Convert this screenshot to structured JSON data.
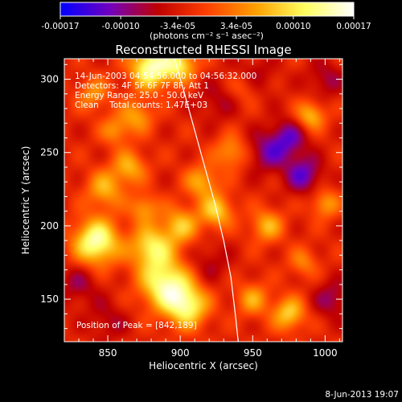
{
  "chart_data": {
    "type": "heatmap",
    "title": "Reconstructed RHESSI Image",
    "xlabel": "Heliocentric X (arcsec)",
    "ylabel": "Heliocentric Y (arcsec)",
    "xlim": [
      820,
      1012
    ],
    "ylim": [
      121,
      314
    ],
    "x_ticks": [
      850,
      900,
      950,
      1000
    ],
    "y_ticks": [
      150,
      200,
      250,
      300
    ],
    "colorbar": {
      "min": -0.00017,
      "max": 0.00017,
      "ticks": [
        "-0.00017",
        "-0.00010",
        "-3.4e-05",
        "3.4e-05",
        "0.00010",
        "0.00017"
      ],
      "unit_label": "(photons cm⁻² s⁻¹ asec⁻²)",
      "colors": [
        "#0000ff",
        "#7000c0",
        "#c00000",
        "#ff4000",
        "#ffa000",
        "#ffff60",
        "#ffffff"
      ]
    },
    "annotations": {
      "time_range": "14-Jun-2003 04:54:56.000 to 04:56:32.000",
      "detectors": "Detectors: 4F 5F 6F 7F 8F, Att 1",
      "energy_range": "Energy Range: 25.0 - 50.0 keV",
      "clean_counts": "Clean    Total counts: 1.47E+03",
      "peak": "Position of Peak = [842,189]"
    },
    "limb_curve": [
      [
        896,
        314
      ],
      [
        903,
        290
      ],
      [
        910,
        265
      ],
      [
        917,
        240
      ],
      [
        924,
        215
      ],
      [
        930,
        190
      ],
      [
        935,
        165
      ],
      [
        938,
        140
      ],
      [
        940,
        121
      ]
    ],
    "sources": [
      {
        "x": 880,
        "y": 308,
        "amp": 0.00017,
        "s": 10
      },
      {
        "x": 900,
        "y": 310,
        "amp": 0.00012,
        "s": 8
      },
      {
        "x": 842,
        "y": 189,
        "amp": 0.00017,
        "s": 11
      },
      {
        "x": 848,
        "y": 225,
        "amp": 9e-05,
        "s": 9
      },
      {
        "x": 890,
        "y": 160,
        "amp": 0.00016,
        "s": 12
      },
      {
        "x": 880,
        "y": 185,
        "amp": 0.00013,
        "s": 10
      },
      {
        "x": 905,
        "y": 145,
        "amp": 0.00014,
        "s": 10
      },
      {
        "x": 900,
        "y": 200,
        "amp": 0.0001,
        "s": 9
      },
      {
        "x": 915,
        "y": 230,
        "amp": 9e-05,
        "s": 8
      },
      {
        "x": 925,
        "y": 210,
        "amp": 0.00011,
        "s": 8
      },
      {
        "x": 935,
        "y": 250,
        "amp": 8e-05,
        "s": 8
      },
      {
        "x": 870,
        "y": 275,
        "amp": 8e-05,
        "s": 8
      },
      {
        "x": 865,
        "y": 240,
        "amp": 9e-05,
        "s": 8
      },
      {
        "x": 840,
        "y": 290,
        "amp": 7e-05,
        "s": 8
      },
      {
        "x": 960,
        "y": 200,
        "amp": 9e-05,
        "s": 8
      },
      {
        "x": 990,
        "y": 275,
        "amp": 0.0001,
        "s": 7
      },
      {
        "x": 975,
        "y": 140,
        "amp": 0.00011,
        "s": 8
      },
      {
        "x": 1000,
        "y": 215,
        "amp": 8e-05,
        "s": 7
      },
      {
        "x": 950,
        "y": 150,
        "amp": 8e-05,
        "s": 8
      },
      {
        "x": 945,
        "y": 295,
        "amp": 7e-05,
        "s": 8
      },
      {
        "x": 875,
        "y": 212,
        "amp": 8e-05,
        "s": 7
      },
      {
        "x": 855,
        "y": 265,
        "amp": 7e-05,
        "s": 7
      },
      {
        "x": 985,
        "y": 175,
        "amp": 6e-05,
        "s": 7
      },
      {
        "x": 960,
        "y": 250,
        "amp": -7e-05,
        "s": 10
      },
      {
        "x": 985,
        "y": 235,
        "amp": -9e-05,
        "s": 9
      },
      {
        "x": 975,
        "y": 260,
        "amp": -8e-05,
        "s": 9
      },
      {
        "x": 950,
        "y": 300,
        "amp": -6e-05,
        "s": 10
      },
      {
        "x": 830,
        "y": 160,
        "amp": -5e-05,
        "s": 10
      },
      {
        "x": 1005,
        "y": 150,
        "amp": -6e-05,
        "s": 9
      },
      {
        "x": 925,
        "y": 285,
        "amp": -4e-05,
        "s": 10
      },
      {
        "x": 850,
        "y": 135,
        "amp": -4e-05,
        "s": 10
      },
      {
        "x": 920,
        "y": 175,
        "amp": -4e-05,
        "s": 10
      },
      {
        "x": 1000,
        "y": 300,
        "amp": -5e-05,
        "s": 9
      }
    ]
  },
  "footer": {
    "timestamp": "8-Jun-2013 19:07"
  }
}
